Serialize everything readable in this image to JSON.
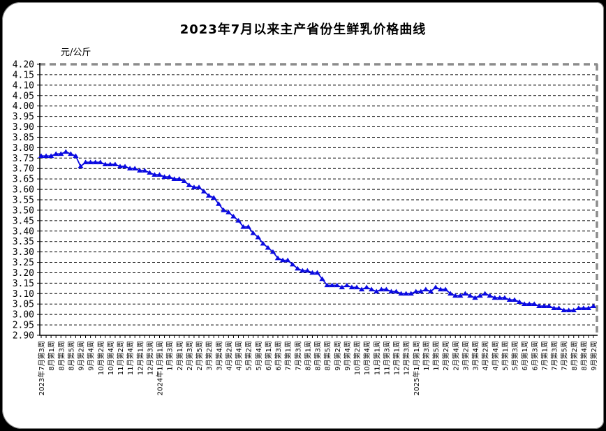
{
  "page": {
    "title": "2023年7月以来主产省份生鲜乳价格曲线",
    "unit_label": "元/公斤"
  },
  "chart_data": {
    "type": "line",
    "title": "2023年7月以来主产省份生鲜乳价格曲线",
    "ylabel": "元/公斤",
    "xlabel": "",
    "ylim": [
      2.9,
      4.2
    ],
    "y_step": 0.05,
    "grid": "horizontal-dashed",
    "legend": "none",
    "marker": "triangle",
    "line_color": "#0a0ae0",
    "grid_color": "#000000",
    "frame_dash_color": "#8c8c8c",
    "y_tick_labels": [
      "4.20",
      "4.15",
      "4.10",
      "4.05",
      "4.00",
      "3.95",
      "3.90",
      "3.85",
      "3.80",
      "3.75",
      "3.70",
      "3.65",
      "3.60",
      "3.55",
      "3.50",
      "3.45",
      "3.40",
      "3.35",
      "3.30",
      "3.25",
      "3.20",
      "3.15",
      "3.10",
      "3.05",
      "3.00",
      "2.95",
      "2.90"
    ],
    "x_tick_every": 2,
    "x_tick_labels": [
      "2023年7月第3周",
      "8月第1周",
      "8月第3周",
      "8月第5周",
      "9月第2周",
      "9月第4周",
      "10月第2周",
      "10月第4周",
      "11月第2周",
      "11月第4周",
      "12月第1周",
      "12月第3周",
      "2024年1月第1周",
      "1月第3周",
      "2月第1周",
      "2月第3周",
      "2月第5周",
      "3月第2周",
      "3月第4周",
      "4月第2周",
      "4月第4周",
      "5月第2周",
      "5月第4周",
      "6月第1周",
      "6月第3周",
      "7月第1周",
      "7月第3周",
      "8月第1周",
      "8月第3周",
      "8月第5周",
      "9月第2周",
      "9月第4周",
      "10月第2周",
      "10月第4周",
      "11月第1周",
      "11月第3周",
      "12月第1周",
      "12月第3周",
      "2025年1月第1周",
      "1月第3周",
      "1月第5周",
      "2月第2周",
      "2月第4周",
      "3月第2周",
      "3月第4周",
      "4月第2周",
      "4月第4周",
      "5月第1周",
      "5月第3周",
      "6月第1周",
      "6月第3周",
      "7月第1周",
      "7月第3周",
      "7月第5周",
      "8月第2周",
      "8月第4周",
      "9月第2周"
    ],
    "values": [
      3.76,
      3.76,
      3.76,
      3.77,
      3.77,
      3.78,
      3.77,
      3.76,
      3.71,
      3.73,
      3.73,
      3.73,
      3.73,
      3.72,
      3.72,
      3.72,
      3.71,
      3.71,
      3.7,
      3.7,
      3.69,
      3.69,
      3.68,
      3.67,
      3.67,
      3.66,
      3.66,
      3.65,
      3.65,
      3.64,
      3.62,
      3.61,
      3.61,
      3.59,
      3.57,
      3.56,
      3.53,
      3.5,
      3.49,
      3.47,
      3.45,
      3.42,
      3.42,
      3.39,
      3.37,
      3.34,
      3.32,
      3.3,
      3.27,
      3.26,
      3.26,
      3.24,
      3.22,
      3.21,
      3.21,
      3.2,
      3.2,
      3.17,
      3.14,
      3.14,
      3.14,
      3.13,
      3.14,
      3.13,
      3.13,
      3.12,
      3.13,
      3.12,
      3.11,
      3.12,
      3.12,
      3.11,
      3.11,
      3.1,
      3.1,
      3.1,
      3.11,
      3.11,
      3.12,
      3.11,
      3.13,
      3.12,
      3.12,
      3.1,
      3.09,
      3.09,
      3.1,
      3.09,
      3.08,
      3.09,
      3.1,
      3.09,
      3.08,
      3.08,
      3.08,
      3.07,
      3.07,
      3.06,
      3.05,
      3.05,
      3.05,
      3.04,
      3.04,
      3.04,
      3.03,
      3.03,
      3.02,
      3.02,
      3.02,
      3.03,
      3.03,
      3.03,
      3.04
    ]
  }
}
